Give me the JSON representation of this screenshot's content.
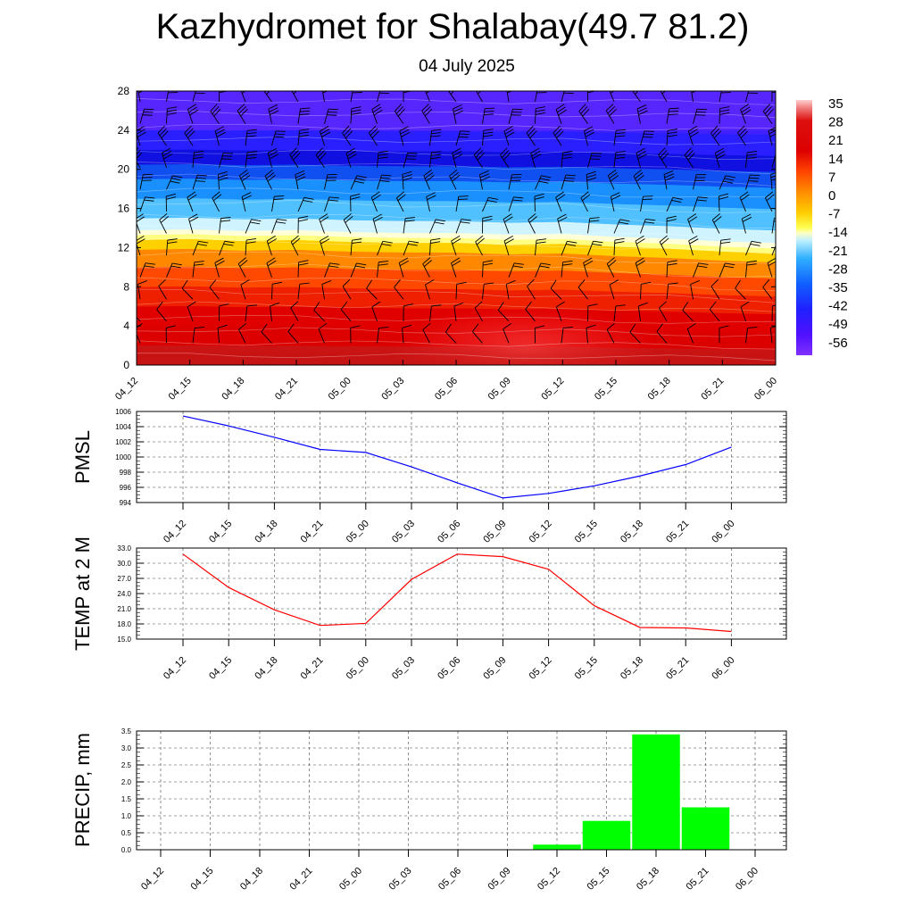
{
  "header": {
    "title": "Kazhydromet for Shalabay(49.7 81.2)",
    "date": "04 July 2025"
  },
  "colors": {
    "pmsl_line": "#0000ff",
    "temp_line": "#ff0000",
    "precip_bar": "#00ff00"
  },
  "chart_data": [
    {
      "type": "heatmap",
      "title": "",
      "ylim": [
        0,
        28
      ],
      "y_ticks": [
        "0",
        "4",
        "8",
        "12",
        "16",
        "20",
        "24",
        "28"
      ],
      "x_ticks": [
        "04_12",
        "04_15",
        "04_18",
        "04_21",
        "05_00",
        "05_03",
        "05_06",
        "05_09",
        "05_12",
        "05_15",
        "05_18",
        "05_21",
        "06_00"
      ],
      "colorbar_labels": [
        "35",
        "28",
        "21",
        "14",
        "7",
        "0",
        "-7",
        "-14",
        "-21",
        "-28",
        "-35",
        "-42",
        "-49",
        "-56"
      ],
      "freezing_level": [
        13.2,
        13.3,
        13.1,
        13.2,
        13.0,
        12.9,
        12.9,
        12.7,
        12.8,
        12.5,
        12.3,
        12.0,
        11.8
      ],
      "wind_barbs": true
    },
    {
      "type": "line",
      "ylabel": "PMSL",
      "ylim": [
        994,
        1006
      ],
      "y_ticks": [
        "994",
        "996",
        "998",
        "1000",
        "1002",
        "1004",
        "1006"
      ],
      "x": [
        "04_12",
        "04_15",
        "04_18",
        "04_21",
        "05_00",
        "05_03",
        "05_06",
        "05_09",
        "05_12",
        "05_15",
        "05_18",
        "05_21",
        "06_00"
      ],
      "values": [
        1005.4,
        1004.1,
        1002.6,
        1001.0,
        1000.6,
        998.7,
        996.6,
        994.6,
        995.2,
        996.2,
        997.5,
        999.0,
        1001.3
      ],
      "grid": true
    },
    {
      "type": "line",
      "ylabel": "TEMP at 2 M",
      "ylim": [
        15.0,
        33.0
      ],
      "y_ticks": [
        "15.0",
        "18.0",
        "21.0",
        "24.0",
        "27.0",
        "30.0",
        "33.0"
      ],
      "x": [
        "04_12",
        "04_15",
        "04_18",
        "04_21",
        "05_00",
        "05_03",
        "05_06",
        "05_09",
        "05_12",
        "05_15",
        "05_18",
        "05_21",
        "06_00"
      ],
      "values": [
        31.8,
        25.2,
        20.8,
        17.7,
        18.1,
        26.8,
        31.8,
        31.3,
        28.8,
        21.6,
        17.3,
        17.2,
        16.5
      ],
      "grid": true
    },
    {
      "type": "bar",
      "ylabel": "PRECIP, mm",
      "ylim": [
        0,
        3.5
      ],
      "y_ticks": [
        "0.0",
        "0.5",
        "1.0",
        "1.5",
        "2.0",
        "2.5",
        "3.0",
        "3.5"
      ],
      "categories": [
        "04_12",
        "04_15",
        "04_18",
        "04_21",
        "05_00",
        "05_03",
        "05_06",
        "05_09",
        "05_12",
        "05_15",
        "05_18",
        "05_21",
        "06_00"
      ],
      "values": [
        0,
        0,
        0,
        0,
        0,
        0,
        0,
        0,
        0.15,
        0.85,
        3.4,
        1.25,
        0
      ],
      "grid": true
    }
  ]
}
